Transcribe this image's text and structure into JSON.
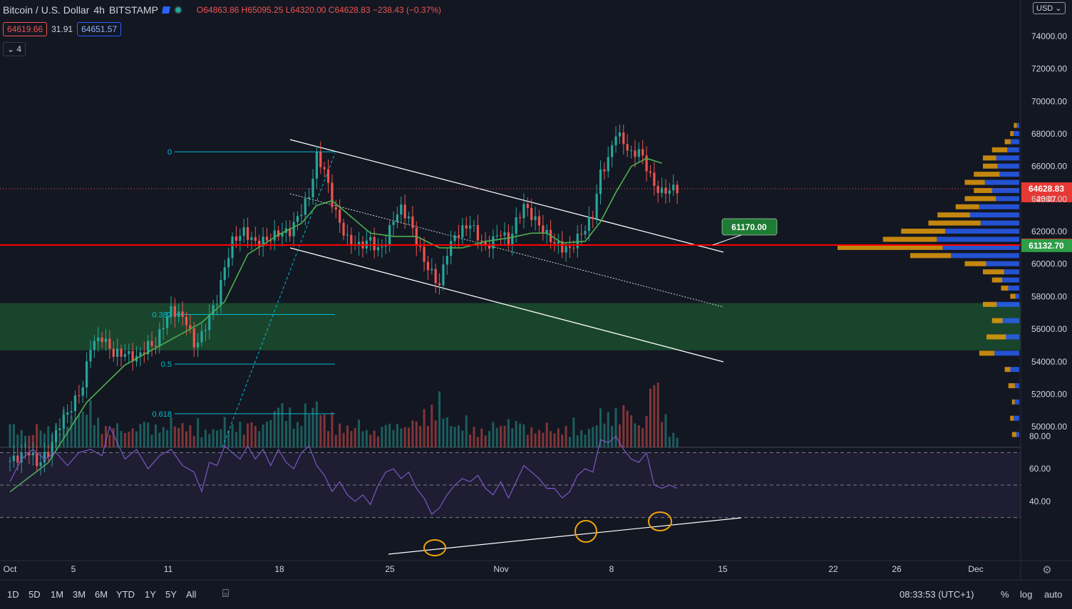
{
  "header": {
    "symbol": "Bitcoin / U.S. Dollar",
    "interval": "4h",
    "exchange": "BITSTAMP",
    "open": "O64863.86",
    "high": "H65095.25",
    "low": "L64320.00",
    "close": "C64628.83",
    "change": "−238.43 (−0.37%)",
    "bid": "64619.66",
    "spread": "31.91",
    "ask": "64651.57",
    "indicators_count": "4"
  },
  "currency": "USD",
  "colors": {
    "up": "#26a69a",
    "down": "#ef5350",
    "background": "#131722",
    "ma": "#4caf50",
    "rsi": "#7e57c2",
    "fib": "#00bcd4",
    "support": "#ff0000",
    "zone": "#1b4d2e",
    "profile_up": "#2962ff",
    "profile_down": "#f0a30a",
    "annotation": "#f0a30a"
  },
  "chart_data": {
    "type": "candlestick",
    "price_axis": {
      "ticks": [
        "50000.00",
        "52000.00",
        "54000.00",
        "56000.00",
        "58000.00",
        "60000.00",
        "62000.00",
        "64000.00",
        "66000.00",
        "68000.00",
        "70000.00",
        "72000.00",
        "74000.00"
      ],
      "range": [
        49000,
        75000
      ]
    },
    "time_axis": {
      "ticks": [
        "Oct",
        "5",
        "11",
        "18",
        "25",
        "Nov",
        "8",
        "15",
        "22",
        "26",
        "Dec"
      ]
    },
    "last_price": {
      "value": 64628.83,
      "label": "64628.83",
      "countdown": "26:07"
    },
    "support_line": {
      "value": 61172.24,
      "label": "61172.24"
    },
    "ma_value": {
      "value": 61132.7,
      "label": "61132.70"
    },
    "callout": {
      "value": 61170.0,
      "label": "61170.00"
    },
    "demand_zone": [
      54700,
      57600
    ],
    "fibonacci": [
      {
        "level": "0",
        "price": 66900
      },
      {
        "level": "0.382",
        "price": 56900
      },
      {
        "level": "0.5",
        "price": 53850
      },
      {
        "level": "0.618",
        "price": 50800
      }
    ],
    "close_path": [
      [
        0,
        47900
      ],
      [
        3,
        48200
      ],
      [
        5,
        48500
      ],
      [
        7,
        47700
      ],
      [
        10,
        48400
      ],
      [
        13,
        50200
      ],
      [
        16,
        51200
      ],
      [
        19,
        52500
      ],
      [
        21,
        55000
      ],
      [
        24,
        55500
      ],
      [
        27,
        54500
      ],
      [
        30,
        54500
      ],
      [
        33,
        54200
      ],
      [
        36,
        55000
      ],
      [
        38,
        55100
      ],
      [
        40,
        56300
      ],
      [
        42,
        57200
      ],
      [
        44,
        56900
      ],
      [
        46,
        56500
      ],
      [
        48,
        55000
      ],
      [
        50,
        55600
      ],
      [
        52,
        56800
      ],
      [
        54,
        57800
      ],
      [
        56,
        59800
      ],
      [
        58,
        61400
      ],
      [
        61,
        62000
      ],
      [
        64,
        61300
      ],
      [
        67,
        61500
      ],
      [
        70,
        61900
      ],
      [
        73,
        62000
      ],
      [
        76,
        63300
      ],
      [
        78,
        64200
      ],
      [
        80,
        66600
      ],
      [
        82,
        65800
      ],
      [
        84,
        63800
      ],
      [
        86,
        62500
      ],
      [
        88,
        61500
      ],
      [
        91,
        61100
      ],
      [
        94,
        61500
      ],
      [
        96,
        60800
      ],
      [
        98,
        61400
      ],
      [
        100,
        62800
      ],
      [
        102,
        63400
      ],
      [
        104,
        62800
      ],
      [
        106,
        61400
      ],
      [
        108,
        60200
      ],
      [
        110,
        59400
      ],
      [
        112,
        58700
      ],
      [
        114,
        60800
      ],
      [
        116,
        61700
      ],
      [
        118,
        62100
      ],
      [
        120,
        62500
      ],
      [
        122,
        61700
      ],
      [
        124,
        61000
      ],
      [
        126,
        61500
      ],
      [
        128,
        62000
      ],
      [
        130,
        61300
      ],
      [
        132,
        62600
      ],
      [
        134,
        63600
      ],
      [
        136,
        63000
      ],
      [
        138,
        62400
      ],
      [
        140,
        61800
      ],
      [
        142,
        61300
      ],
      [
        144,
        61000
      ],
      [
        146,
        60900
      ],
      [
        148,
        61600
      ],
      [
        150,
        62200
      ],
      [
        152,
        63000
      ],
      [
        154,
        65600
      ],
      [
        156,
        66400
      ],
      [
        158,
        68100
      ],
      [
        160,
        67500
      ],
      [
        162,
        66700
      ],
      [
        164,
        67000
      ],
      [
        166,
        66000
      ],
      [
        168,
        64800
      ],
      [
        170,
        64400
      ],
      [
        172,
        64600
      ],
      [
        174,
        64628
      ]
    ],
    "ma_path": [
      [
        0,
        46000
      ],
      [
        10,
        47800
      ],
      [
        20,
        51500
      ],
      [
        30,
        53800
      ],
      [
        40,
        55100
      ],
      [
        50,
        56400
      ],
      [
        56,
        57700
      ],
      [
        62,
        60600
      ],
      [
        70,
        61800
      ],
      [
        76,
        62500
      ],
      [
        80,
        63600
      ],
      [
        84,
        63900
      ],
      [
        88,
        63100
      ],
      [
        94,
        61900
      ],
      [
        100,
        61700
      ],
      [
        106,
        61700
      ],
      [
        112,
        61000
      ],
      [
        118,
        61000
      ],
      [
        124,
        61400
      ],
      [
        130,
        61600
      ],
      [
        136,
        61900
      ],
      [
        140,
        61900
      ],
      [
        144,
        61300
      ],
      [
        150,
        61400
      ],
      [
        154,
        62600
      ],
      [
        158,
        64400
      ],
      [
        162,
        66000
      ],
      [
        166,
        66500
      ],
      [
        170,
        66200
      ]
    ],
    "volume_path": [
      [
        0,
        0.3
      ],
      [
        5,
        0.15
      ],
      [
        10,
        0.25
      ],
      [
        13,
        0.3
      ],
      [
        20,
        0.5
      ],
      [
        25,
        0.25
      ],
      [
        30,
        0.2
      ],
      [
        35,
        0.3
      ],
      [
        40,
        0.25
      ],
      [
        45,
        0.3
      ],
      [
        50,
        0.2
      ],
      [
        55,
        0.25
      ],
      [
        60,
        0.3
      ],
      [
        65,
        0.25
      ],
      [
        70,
        0.5
      ],
      [
        72,
        0.55
      ],
      [
        75,
        0.3
      ],
      [
        80,
        0.6
      ],
      [
        83,
        0.3
      ],
      [
        90,
        0.25
      ],
      [
        95,
        0.2
      ],
      [
        100,
        0.3
      ],
      [
        105,
        0.25
      ],
      [
        108,
        0.45
      ],
      [
        112,
        0.55
      ],
      [
        115,
        0.3
      ],
      [
        120,
        0.25
      ],
      [
        125,
        0.2
      ],
      [
        130,
        0.35
      ],
      [
        135,
        0.25
      ],
      [
        140,
        0.2
      ],
      [
        145,
        0.25
      ],
      [
        150,
        0.2
      ],
      [
        155,
        0.4
      ],
      [
        160,
        0.5
      ],
      [
        165,
        0.25
      ],
      [
        168,
        0.95
      ],
      [
        172,
        0.2
      ],
      [
        174,
        0.15
      ]
    ],
    "rsi": {
      "ticks": [
        "40.00",
        "60.00",
        "80.00"
      ],
      "range": [
        25,
        90
      ],
      "bands": [
        30,
        50,
        70
      ],
      "path": [
        [
          0,
          52
        ],
        [
          3,
          66
        ],
        [
          6,
          72
        ],
        [
          9,
          66
        ],
        [
          12,
          70
        ],
        [
          15,
          62
        ],
        [
          18,
          70
        ],
        [
          21,
          72
        ],
        [
          24,
          68
        ],
        [
          26,
          86
        ],
        [
          28,
          76
        ],
        [
          30,
          66
        ],
        [
          33,
          72
        ],
        [
          36,
          60
        ],
        [
          39,
          68
        ],
        [
          42,
          72
        ],
        [
          45,
          62
        ],
        [
          48,
          58
        ],
        [
          50,
          46
        ],
        [
          52,
          64
        ],
        [
          54,
          62
        ],
        [
          56,
          74
        ],
        [
          58,
          70
        ],
        [
          60,
          66
        ],
        [
          62,
          74
        ],
        [
          64,
          66
        ],
        [
          66,
          72
        ],
        [
          68,
          62
        ],
        [
          70,
          72
        ],
        [
          72,
          64
        ],
        [
          74,
          60
        ],
        [
          76,
          70
        ],
        [
          78,
          74
        ],
        [
          80,
          62
        ],
        [
          82,
          56
        ],
        [
          84,
          46
        ],
        [
          86,
          52
        ],
        [
          88,
          44
        ],
        [
          90,
          40
        ],
        [
          92,
          44
        ],
        [
          94,
          38
        ],
        [
          96,
          50
        ],
        [
          98,
          58
        ],
        [
          100,
          60
        ],
        [
          102,
          54
        ],
        [
          104,
          58
        ],
        [
          106,
          48
        ],
        [
          108,
          42
        ],
        [
          110,
          32
        ],
        [
          112,
          36
        ],
        [
          114,
          44
        ],
        [
          116,
          50
        ],
        [
          118,
          54
        ],
        [
          120,
          52
        ],
        [
          122,
          56
        ],
        [
          124,
          48
        ],
        [
          126,
          44
        ],
        [
          128,
          52
        ],
        [
          130,
          42
        ],
        [
          132,
          52
        ],
        [
          134,
          62
        ],
        [
          136,
          58
        ],
        [
          138,
          54
        ],
        [
          140,
          48
        ],
        [
          142,
          48
        ],
        [
          144,
          42
        ],
        [
          146,
          46
        ],
        [
          148,
          56
        ],
        [
          150,
          60
        ],
        [
          152,
          58
        ],
        [
          154,
          78
        ],
        [
          156,
          76
        ],
        [
          158,
          80
        ],
        [
          160,
          72
        ],
        [
          162,
          66
        ],
        [
          164,
          64
        ],
        [
          166,
          70
        ],
        [
          168,
          50
        ],
        [
          170,
          48
        ],
        [
          172,
          50
        ],
        [
          174,
          48
        ]
      ]
    },
    "volume_profile": [
      [
        49500,
        0.04
      ],
      [
        50500,
        0.05
      ],
      [
        51500,
        0.04
      ],
      [
        52500,
        0.06
      ],
      [
        53500,
        0.08
      ],
      [
        54500,
        0.22
      ],
      [
        55500,
        0.18
      ],
      [
        56500,
        0.15
      ],
      [
        57500,
        0.2
      ],
      [
        58000,
        0.05
      ],
      [
        58500,
        0.1
      ],
      [
        59000,
        0.15
      ],
      [
        59500,
        0.2
      ],
      [
        60000,
        0.3
      ],
      [
        60500,
        0.6
      ],
      [
        61000,
        1.0
      ],
      [
        61500,
        0.75
      ],
      [
        62000,
        0.65
      ],
      [
        62500,
        0.5
      ],
      [
        63000,
        0.45
      ],
      [
        63500,
        0.35
      ],
      [
        64000,
        0.3
      ],
      [
        64500,
        0.25
      ],
      [
        65000,
        0.3
      ],
      [
        65500,
        0.25
      ],
      [
        66000,
        0.2
      ],
      [
        66500,
        0.2
      ],
      [
        67000,
        0.15
      ],
      [
        67500,
        0.08
      ],
      [
        68000,
        0.05
      ],
      [
        68500,
        0.03
      ]
    ]
  },
  "bottombar": {
    "ranges": [
      "1D",
      "5D",
      "1M",
      "3M",
      "6M",
      "YTD",
      "1Y",
      "5Y",
      "All"
    ],
    "time": "08:33:53 (UTC+1)",
    "percent": "%",
    "log": "log",
    "auto": "auto"
  }
}
